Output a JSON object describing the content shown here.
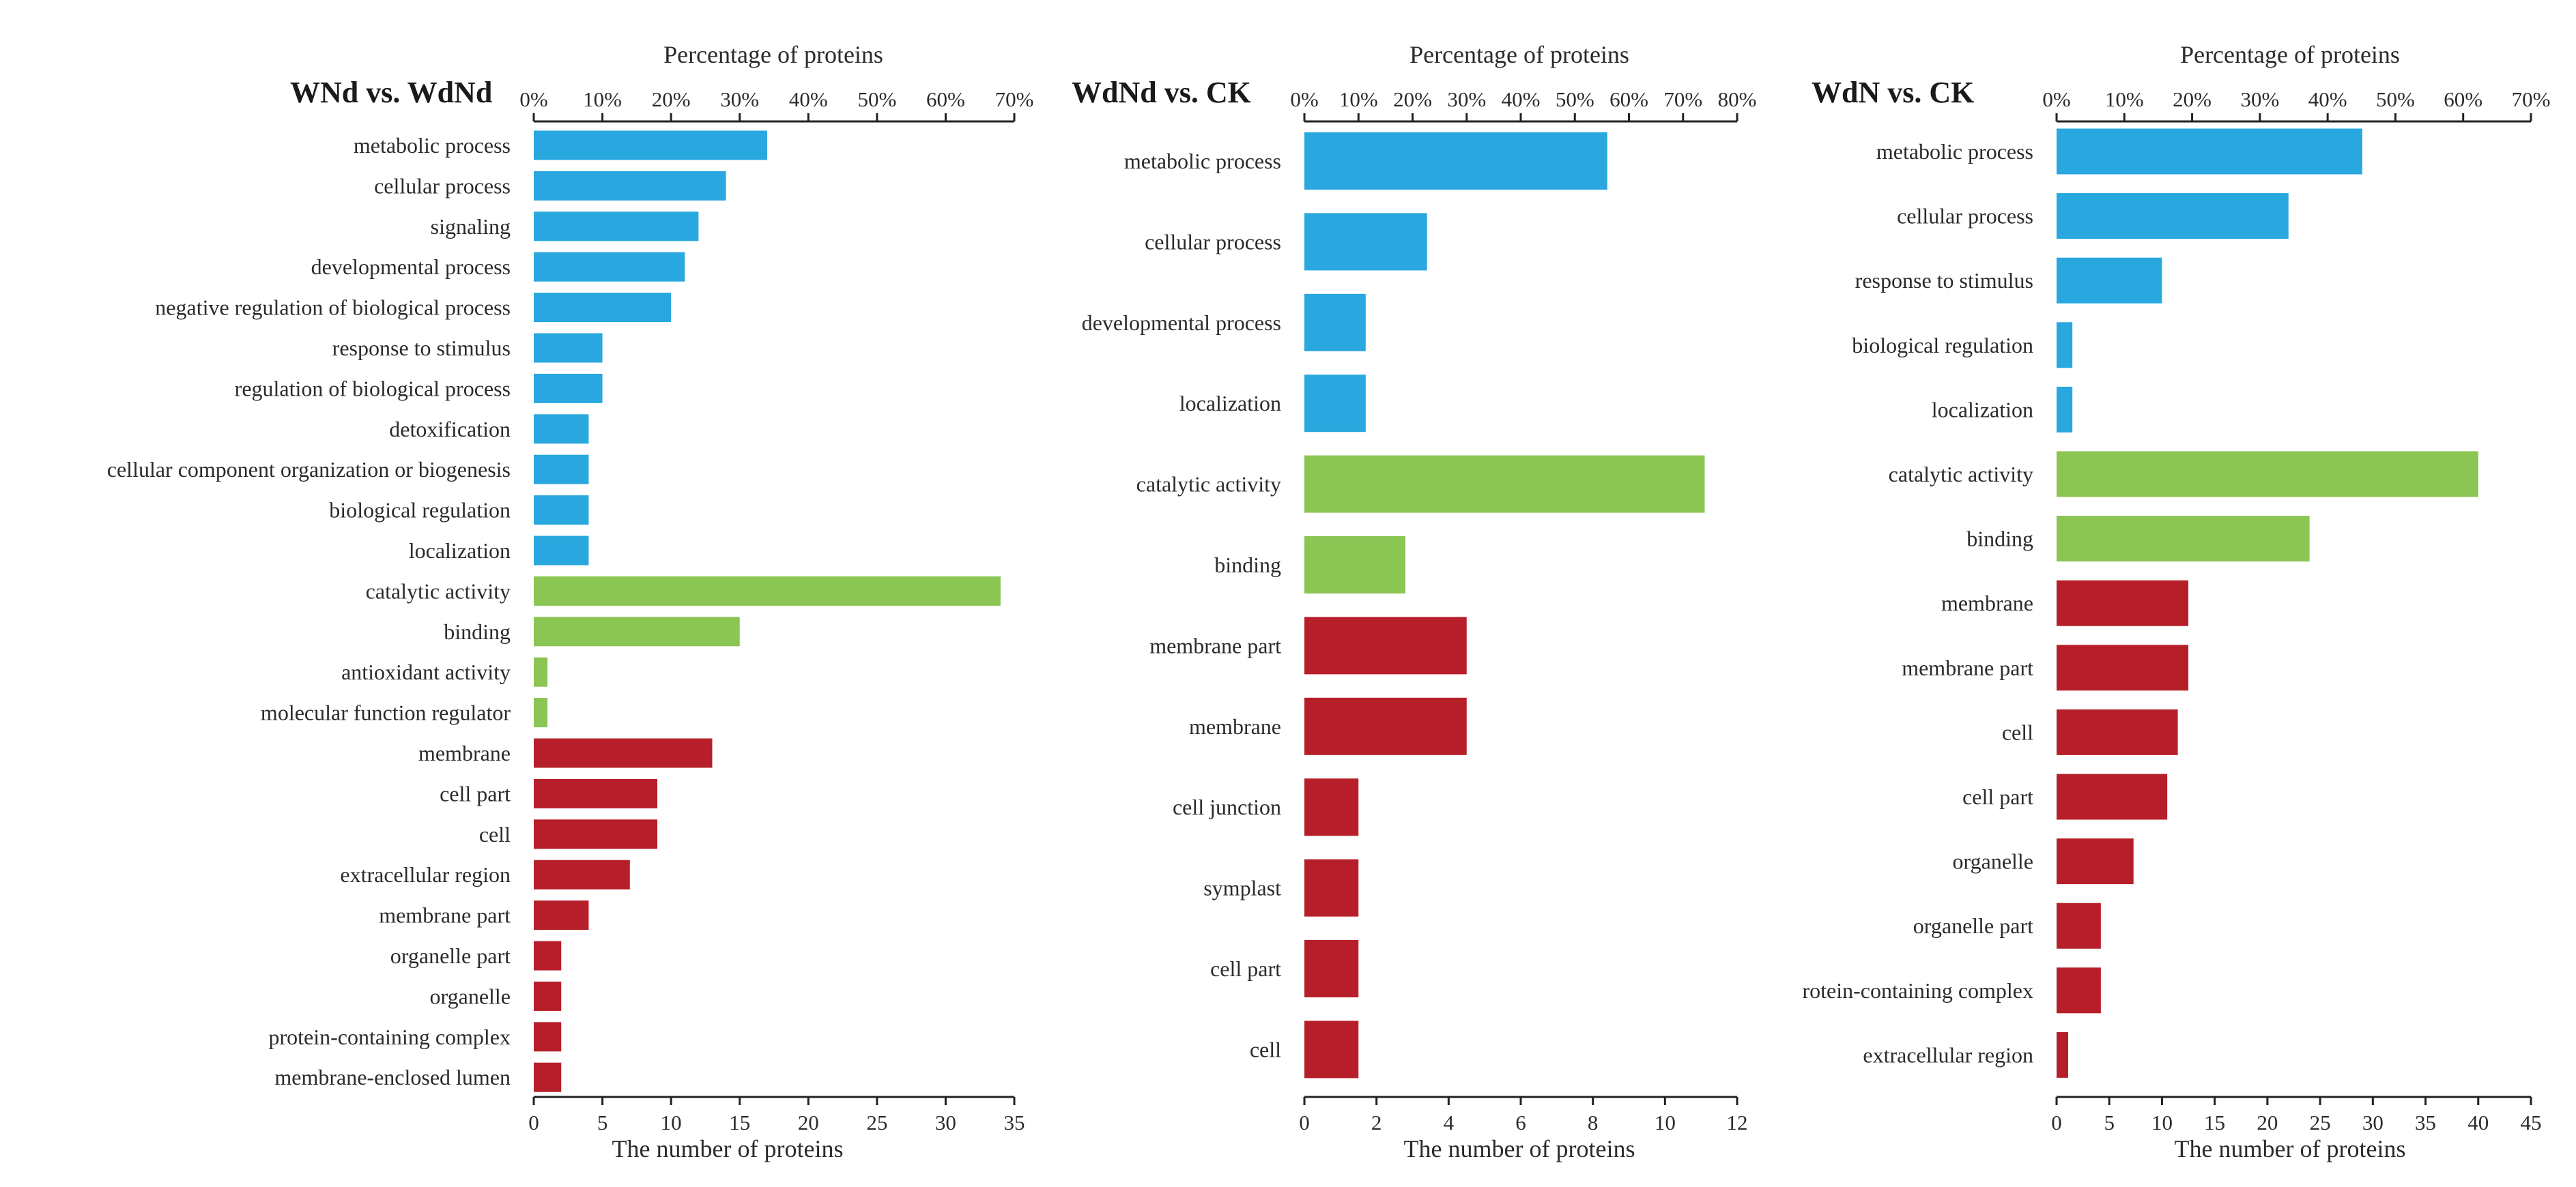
{
  "colors": {
    "biological_process": "#29a7df",
    "molecular_function": "#8bc553",
    "cellular_component": "#b61f29"
  },
  "chart_data": [
    {
      "type": "bar",
      "orientation": "horizontal",
      "title": "WNd vs. WdNd",
      "top_axis_title": "Percentage of proteins",
      "bottom_axis_title": "The number of proteins",
      "bottom_ticks": [
        "0",
        "5",
        "10",
        "15",
        "20",
        "25",
        "30",
        "35"
      ],
      "top_ticks": [
        "0%",
        "10%",
        "20%",
        "30%",
        "40%",
        "50%",
        "60%",
        "70%"
      ],
      "xlim": [
        0,
        35
      ],
      "categories": [
        "metabolic process",
        "cellular process",
        "signaling",
        "developmental process",
        "negative regulation of biological process",
        "response to stimulus",
        "regulation of biological process",
        "detoxification",
        "cellular component organization or biogenesis",
        "biological regulation",
        "localization",
        "catalytic activity",
        "binding",
        "antioxidant activity",
        "molecular function regulator",
        "membrane",
        "cell part",
        "cell",
        "extracellular region",
        "membrane part",
        "organelle part",
        "organelle",
        "protein-containing complex",
        "membrane-enclosed lumen"
      ],
      "values": [
        17,
        14,
        12,
        11,
        10,
        5,
        5,
        4,
        4,
        4,
        4,
        34,
        15,
        1,
        1,
        13,
        9,
        9,
        7,
        4,
        2,
        2,
        2,
        2
      ],
      "groups": [
        "biological_process",
        "biological_process",
        "biological_process",
        "biological_process",
        "biological_process",
        "biological_process",
        "biological_process",
        "biological_process",
        "biological_process",
        "biological_process",
        "biological_process",
        "molecular_function",
        "molecular_function",
        "molecular_function",
        "molecular_function",
        "cellular_component",
        "cellular_component",
        "cellular_component",
        "cellular_component",
        "cellular_component",
        "cellular_component",
        "cellular_component",
        "cellular_component",
        "cellular_component"
      ]
    },
    {
      "type": "bar",
      "orientation": "horizontal",
      "title": "WdNd vs. CK",
      "top_axis_title": "Percentage of proteins",
      "bottom_axis_title": "The number of proteins",
      "bottom_ticks": [
        "0",
        "2",
        "4",
        "6",
        "8",
        "10",
        "12"
      ],
      "top_ticks": [
        "0%",
        "10%",
        "20%",
        "30%",
        "40%",
        "50%",
        "60%",
        "70%",
        "80%"
      ],
      "xlim": [
        0,
        12
      ],
      "categories": [
        "metabolic process",
        "cellular process",
        "developmental process",
        "localization",
        "catalytic activity",
        "binding",
        "membrane part",
        "membrane",
        "cell junction",
        "symplast",
        "cell part",
        "cell"
      ],
      "values": [
        8.4,
        3.4,
        1.7,
        1.7,
        11.1,
        2.8,
        4.5,
        4.5,
        1.5,
        1.5,
        1.5,
        1.5
      ],
      "groups": [
        "biological_process",
        "biological_process",
        "biological_process",
        "biological_process",
        "molecular_function",
        "molecular_function",
        "cellular_component",
        "cellular_component",
        "cellular_component",
        "cellular_component",
        "cellular_component",
        "cellular_component"
      ]
    },
    {
      "type": "bar",
      "orientation": "horizontal",
      "title": "WdN vs. CK",
      "top_axis_title": "Percentage of proteins",
      "bottom_axis_title": "The number of proteins",
      "bottom_ticks": [
        "0",
        "5",
        "10",
        "15",
        "20",
        "25",
        "30",
        "35",
        "40",
        "45"
      ],
      "top_ticks": [
        "0%",
        "10%",
        "20%",
        "30%",
        "40%",
        "50%",
        "60%",
        "70%"
      ],
      "xlim": [
        0,
        45
      ],
      "categories": [
        "metabolic process",
        "cellular process",
        "response to stimulus",
        "biological regulation",
        "localization",
        "catalytic activity",
        "binding",
        "membrane",
        "membrane part",
        "cell",
        "cell part",
        "organelle",
        "organelle part",
        "rotein-containing complex",
        "extracellular region"
      ],
      "values": [
        29,
        22,
        10,
        1.5,
        1.5,
        40,
        24,
        12.5,
        12.5,
        11.5,
        10.5,
        7.3,
        4.2,
        4.2,
        1.1
      ],
      "groups": [
        "biological_process",
        "biological_process",
        "biological_process",
        "biological_process",
        "biological_process",
        "molecular_function",
        "molecular_function",
        "cellular_component",
        "cellular_component",
        "cellular_component",
        "cellular_component",
        "cellular_component",
        "cellular_component",
        "cellular_component",
        "cellular_component"
      ]
    }
  ]
}
